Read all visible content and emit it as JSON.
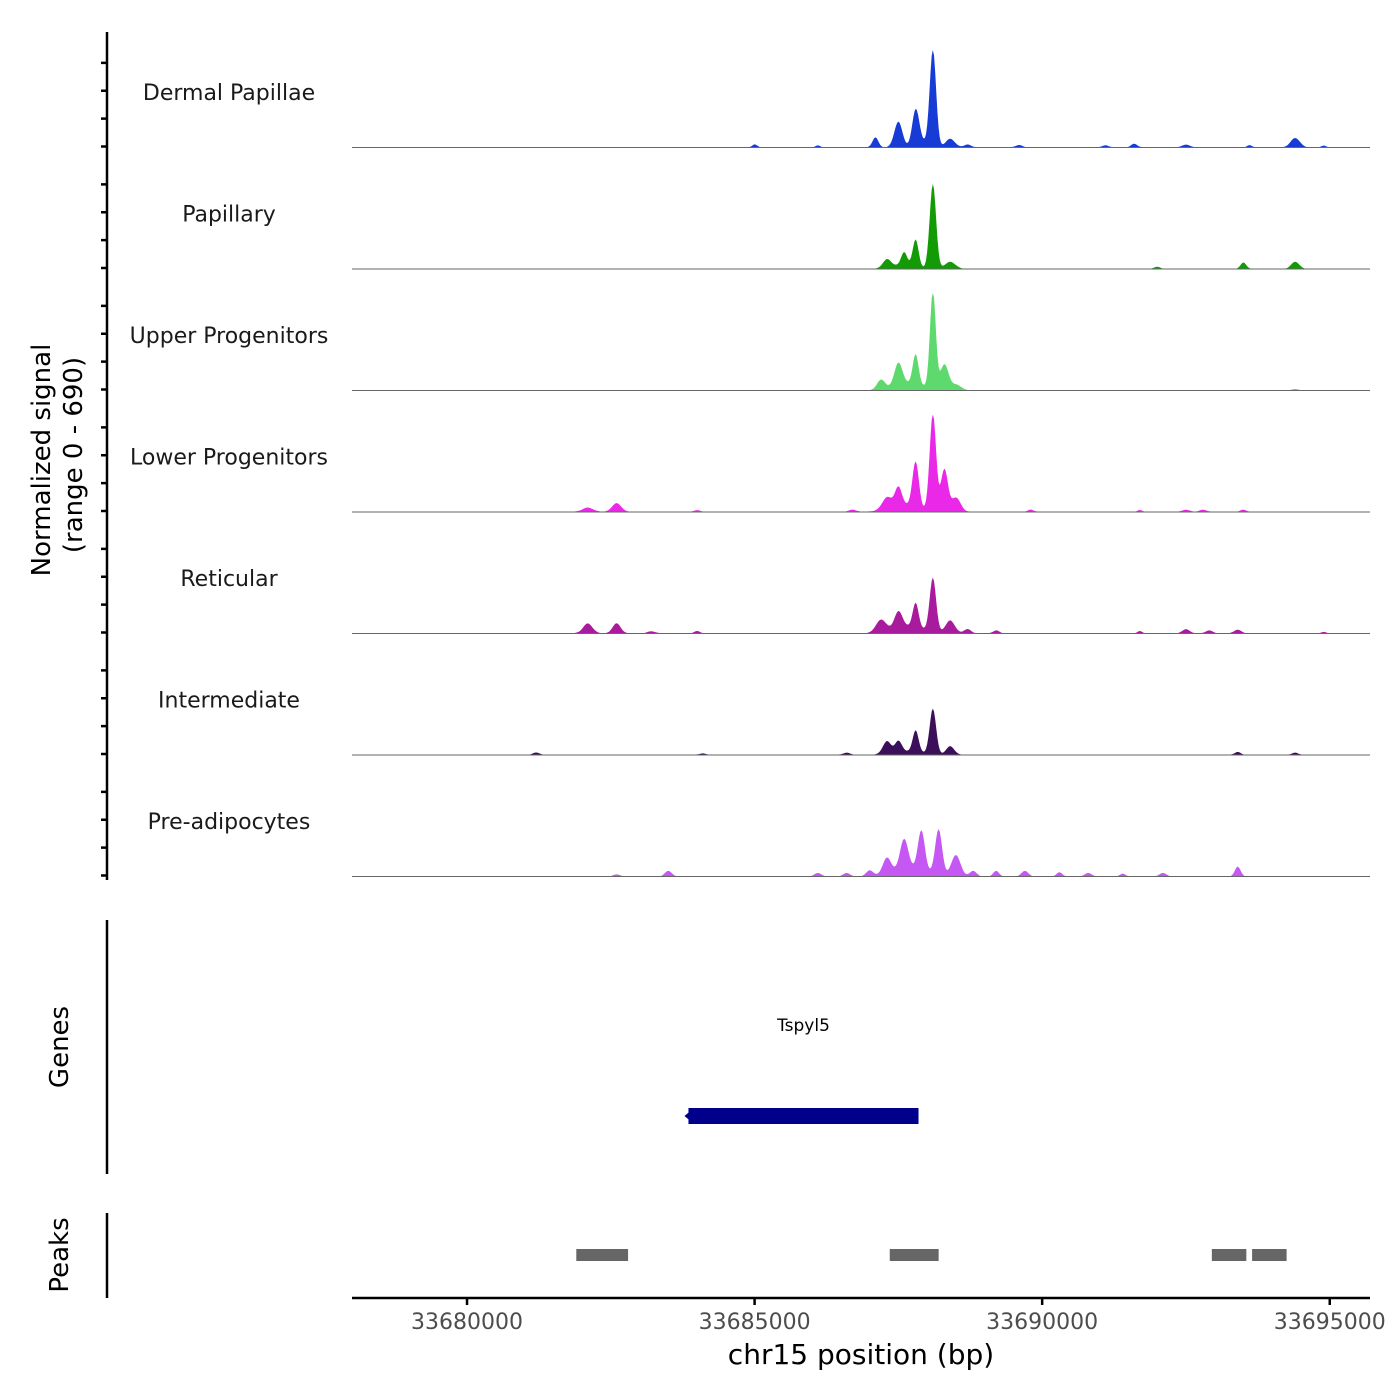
{
  "chart_data": {
    "type": "area",
    "genome": "chr15",
    "xlabel": "chr15 position (bp)",
    "xlim": [
      33678000,
      33695700
    ],
    "xticks": [
      {
        "value": 33680000,
        "label": "33680000"
      },
      {
        "value": 33685000,
        "label": "33685000"
      },
      {
        "value": 33690000,
        "label": "33690000"
      },
      {
        "value": 33695000,
        "label": "33695000"
      }
    ],
    "coverage": {
      "ylabel": [
        "Normalized signal",
        "(range 0 - 690)"
      ],
      "ylim": [
        0,
        690
      ],
      "tracks": [
        {
          "name": "Dermal Papillae",
          "color": "#173cd6",
          "background": 3,
          "peaks": [
            [
              33687100,
              70,
              50
            ],
            [
              33687500,
              180,
              70
            ],
            [
              33687800,
              250,
              60
            ],
            [
              33688100,
              690,
              55
            ],
            [
              33688400,
              60,
              80
            ],
            [
              33688700,
              20,
              60
            ],
            [
              33689600,
              15,
              60
            ],
            [
              33691100,
              15,
              50
            ],
            [
              33691600,
              25,
              50
            ],
            [
              33692500,
              20,
              60
            ],
            [
              33693600,
              15,
              40
            ],
            [
              33694400,
              65,
              80
            ],
            [
              33694900,
              12,
              40
            ],
            [
              33685000,
              20,
              40
            ],
            [
              33686100,
              12,
              40
            ],
            [
              33687900,
              40,
              90
            ]
          ]
        },
        {
          "name": "Papillary",
          "color": "#139b05",
          "background": 2,
          "peaks": [
            [
              33687300,
              60,
              70
            ],
            [
              33687600,
              90,
              50
            ],
            [
              33687800,
              190,
              50
            ],
            [
              33688100,
              600,
              55
            ],
            [
              33688400,
              50,
              90
            ],
            [
              33692000,
              15,
              50
            ],
            [
              33693500,
              45,
              50
            ],
            [
              33694400,
              50,
              70
            ],
            [
              33687600,
              30,
              200
            ]
          ]
        },
        {
          "name": "Upper Progenitors",
          "color": "#5dd96d",
          "background": 2,
          "peaks": [
            [
              33687200,
              70,
              70
            ],
            [
              33687500,
              160,
              70
            ],
            [
              33687800,
              210,
              50
            ],
            [
              33688100,
              690,
              50
            ],
            [
              33688300,
              180,
              70
            ],
            [
              33688500,
              40,
              90
            ],
            [
              33687700,
              50,
              250
            ],
            [
              33694400,
              10,
              50
            ]
          ]
        },
        {
          "name": "Lower Progenitors",
          "color": "#ea28e7",
          "background": 3,
          "peaks": [
            [
              33682100,
              30,
              90
            ],
            [
              33682600,
              60,
              80
            ],
            [
              33684000,
              10,
              60
            ],
            [
              33686700,
              15,
              60
            ],
            [
              33687300,
              80,
              80
            ],
            [
              33687500,
              130,
              60
            ],
            [
              33687800,
              320,
              55
            ],
            [
              33688100,
              690,
              55
            ],
            [
              33688300,
              300,
              60
            ],
            [
              33688500,
              100,
              80
            ],
            [
              33689800,
              15,
              50
            ],
            [
              33691700,
              12,
              40
            ],
            [
              33692500,
              15,
              60
            ],
            [
              33692800,
              15,
              60
            ],
            [
              33693500,
              15,
              50
            ],
            [
              33687600,
              50,
              250
            ]
          ]
        },
        {
          "name": "Reticular",
          "color": "#a91b9d",
          "background": 3,
          "peaks": [
            [
              33682100,
              70,
              80
            ],
            [
              33682600,
              70,
              70
            ],
            [
              33683200,
              15,
              60
            ],
            [
              33684000,
              15,
              50
            ],
            [
              33687200,
              90,
              90
            ],
            [
              33687500,
              120,
              70
            ],
            [
              33687800,
              170,
              50
            ],
            [
              33688100,
              380,
              55
            ],
            [
              33688400,
              90,
              80
            ],
            [
              33688700,
              30,
              60
            ],
            [
              33689200,
              20,
              50
            ],
            [
              33691700,
              15,
              40
            ],
            [
              33692500,
              30,
              60
            ],
            [
              33692900,
              20,
              60
            ],
            [
              33693400,
              25,
              60
            ],
            [
              33694900,
              10,
              40
            ],
            [
              33687700,
              50,
              250
            ]
          ]
        },
        {
          "name": "Intermediate",
          "color": "#3b0f59",
          "background": 3,
          "peaks": [
            [
              33681200,
              15,
              60
            ],
            [
              33684100,
              10,
              50
            ],
            [
              33686600,
              15,
              60
            ],
            [
              33687300,
              90,
              70
            ],
            [
              33687500,
              80,
              60
            ],
            [
              33687800,
              150,
              50
            ],
            [
              33688100,
              320,
              55
            ],
            [
              33688400,
              60,
              70
            ],
            [
              33693400,
              20,
              50
            ],
            [
              33694400,
              15,
              50
            ],
            [
              33687700,
              25,
              250
            ]
          ]
        },
        {
          "name": "Pre-adipocytes",
          "color": "#c558f3",
          "background": 0,
          "peaks": [
            [
              33682600,
              15,
              60
            ],
            [
              33683500,
              40,
              60
            ],
            [
              33686100,
              25,
              60
            ],
            [
              33686600,
              25,
              60
            ],
            [
              33687000,
              40,
              60
            ],
            [
              33687300,
              110,
              70
            ],
            [
              33687600,
              210,
              70
            ],
            [
              33687900,
              280,
              60
            ],
            [
              33688200,
              320,
              60
            ],
            [
              33688500,
              150,
              80
            ],
            [
              33688800,
              40,
              60
            ],
            [
              33689200,
              40,
              50
            ],
            [
              33689700,
              40,
              60
            ],
            [
              33690300,
              30,
              50
            ],
            [
              33690800,
              25,
              60
            ],
            [
              33691400,
              20,
              50
            ],
            [
              33692100,
              25,
              60
            ],
            [
              33693400,
              70,
              50
            ],
            [
              33687700,
              60,
              300
            ]
          ]
        }
      ]
    },
    "genes": {
      "label": "Genes",
      "items": [
        {
          "name": "Tspyl5",
          "start": 33683850,
          "end": 33687850,
          "strand": "-",
          "color": "#00008b"
        }
      ]
    },
    "peaks": {
      "label": "Peaks",
      "color": "#666666",
      "regions": [
        [
          33681900,
          33682800
        ],
        [
          33687350,
          33688200
        ],
        [
          33692950,
          33693550
        ],
        [
          33693650,
          33694250
        ]
      ]
    }
  }
}
